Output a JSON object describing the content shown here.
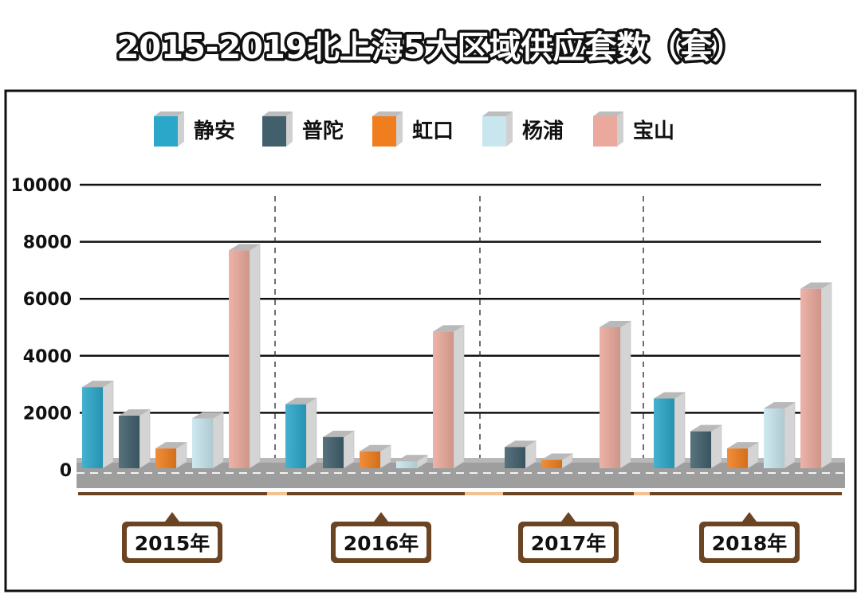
{
  "chart_data": {
    "type": "bar",
    "title": "2015-2019北上海5大区域供应套数（套）",
    "categories": [
      "2015年",
      "2016年",
      "2017年",
      "2018年"
    ],
    "series": [
      {
        "name": "静安",
        "color": "#2aa7c9",
        "values": [
          2900,
          2300,
          0,
          2500
        ]
      },
      {
        "name": "普陀",
        "color": "#41606c",
        "values": [
          1900,
          1150,
          800,
          1350
        ]
      },
      {
        "name": "虹口",
        "color": "#f07e1e",
        "values": [
          750,
          650,
          350,
          750
        ]
      },
      {
        "name": "杨浦",
        "color": "#c8e6ee",
        "values": [
          1800,
          300,
          0,
          2150
        ]
      },
      {
        "name": "宝山",
        "color": "#eaa99c",
        "values": [
          7700,
          4850,
          5000,
          6350
        ]
      }
    ],
    "yticks": [
      "0",
      "2000",
      "4000",
      "6000",
      "8000",
      "10000"
    ],
    "ylim": [
      0,
      10000
    ],
    "grid": true,
    "legend_position": "top"
  }
}
